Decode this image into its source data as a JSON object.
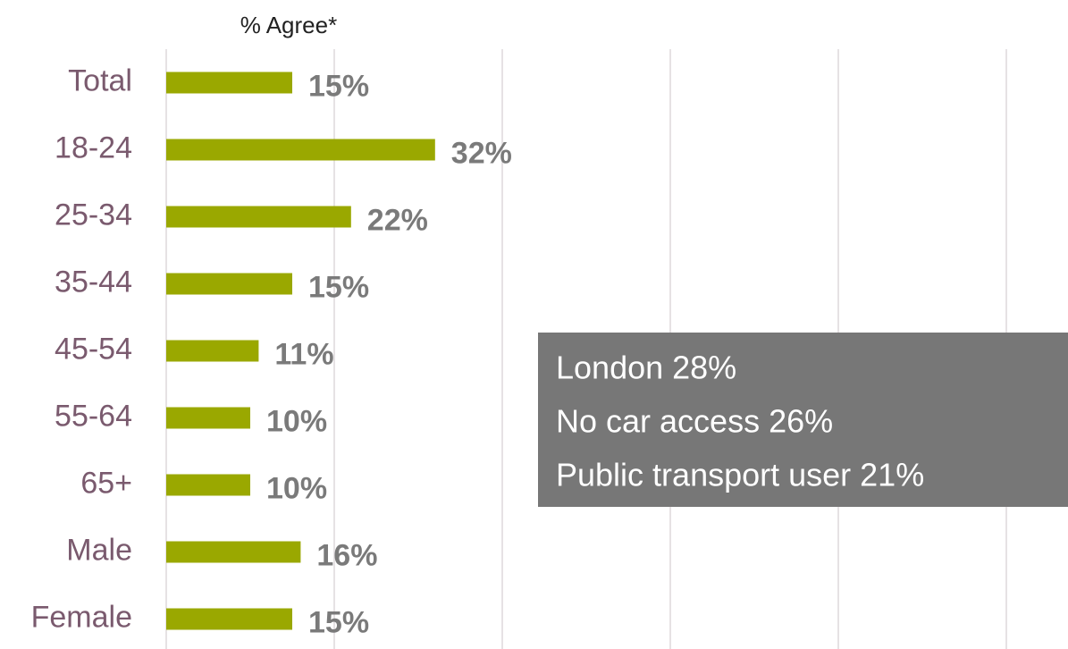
{
  "chart_data": {
    "type": "bar",
    "orientation": "horizontal",
    "x_label": "% Agree*",
    "categories": [
      "Total",
      "18-24",
      "25-34",
      "35-44",
      "45-54",
      "55-64",
      "65+",
      "Male",
      "Female"
    ],
    "values": [
      15,
      32,
      22,
      15,
      11,
      10,
      10,
      16,
      15
    ],
    "value_labels": [
      "15%",
      "32%",
      "22%",
      "15%",
      "11%",
      "10%",
      "10%",
      "16%",
      "15%"
    ],
    "color": "#9aa800",
    "xlim": [
      0,
      100
    ],
    "xticks": [
      0,
      20,
      40,
      60,
      80,
      100
    ],
    "grid": true,
    "annotations": [
      "London 28%",
      "No car access 26%",
      "Public transport user 21%"
    ]
  }
}
